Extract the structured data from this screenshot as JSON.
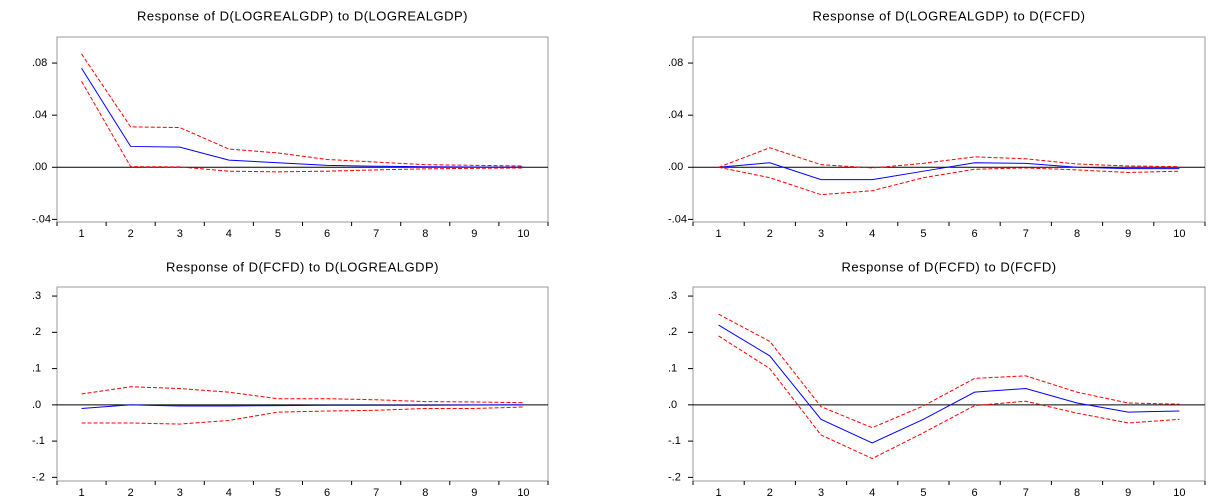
{
  "chart_data": [
    {
      "type": "line",
      "title": "Response of D(LOGREALGDP) to D(LOGREALGDP)",
      "categories": [
        "1",
        "2",
        "3",
        "4",
        "5",
        "6",
        "7",
        "8",
        "9",
        "10"
      ],
      "ylim": [
        -0.042,
        0.1
      ],
      "yticks": [
        {
          "value": -0.04,
          "label": "-.04"
        },
        {
          "value": 0,
          "label": ".00"
        },
        {
          "value": 0.04,
          "label": ".04"
        },
        {
          "value": 0.08,
          "label": ".08"
        }
      ],
      "series": [
        {
          "color": "#0000ff",
          "dash": false,
          "values": [
            0.076,
            0.016,
            0.0155,
            0.0055,
            0.0035,
            0.0015,
            0.0008,
            0.0004,
            0.0002,
            0.0001
          ]
        },
        {
          "color": "#ff0000",
          "dash": true,
          "values": [
            0.087,
            0.031,
            0.0305,
            0.014,
            0.011,
            0.006,
            0.004,
            0.002,
            0.0015,
            0.001
          ]
        },
        {
          "color": "#ff0000",
          "dash": true,
          "values": [
            0.066,
            0.0005,
            0.0003,
            -0.003,
            -0.0035,
            -0.003,
            -0.002,
            -0.0012,
            -0.0008,
            -0.0005
          ]
        }
      ]
    },
    {
      "type": "line",
      "title": "Response of D(LOGREALGDP) to D(FCFD)",
      "categories": [
        "1",
        "2",
        "3",
        "4",
        "5",
        "6",
        "7",
        "8",
        "9",
        "10"
      ],
      "ylim": [
        -0.042,
        0.1
      ],
      "yticks": [
        {
          "value": -0.04,
          "label": "-.04"
        },
        {
          "value": 0,
          "label": ".00"
        },
        {
          "value": 0.04,
          "label": ".04"
        },
        {
          "value": 0.08,
          "label": ".08"
        }
      ],
      "series": [
        {
          "color": "#0000ff",
          "dash": false,
          "values": [
            0,
            0.0035,
            -0.0095,
            -0.0095,
            -0.003,
            0.0035,
            0.003,
            0,
            -0.001,
            -0.001
          ]
        },
        {
          "color": "#ff0000",
          "dash": true,
          "values": [
            0,
            0.015,
            0.002,
            -0.0005,
            0.003,
            0.008,
            0.0065,
            0.0025,
            0.001,
            0.0005
          ]
        },
        {
          "color": "#ff0000",
          "dash": true,
          "values": [
            0,
            -0.008,
            -0.021,
            -0.018,
            -0.008,
            -0.0015,
            -0.0005,
            -0.002,
            -0.004,
            -0.003
          ]
        }
      ]
    },
    {
      "type": "line",
      "title": "Response of D(FCFD) to D(LOGREALGDP)",
      "categories": [
        "1",
        "2",
        "3",
        "4",
        "5",
        "6",
        "7",
        "8",
        "9",
        "10"
      ],
      "ylim": [
        -0.21,
        0.325
      ],
      "yticks": [
        {
          "value": -0.2,
          "label": "-.2"
        },
        {
          "value": -0.1,
          "label": "-.1"
        },
        {
          "value": 0,
          "label": ".0"
        },
        {
          "value": 0.1,
          "label": ".1"
        },
        {
          "value": 0.2,
          "label": ".2"
        },
        {
          "value": 0.3,
          "label": ".3"
        }
      ],
      "series": [
        {
          "color": "#0000ff",
          "dash": false,
          "values": [
            -0.01,
            0,
            -0.003,
            -0.003,
            -0.002,
            -0.001,
            -0.001,
            -0.001,
            -0.0005,
            0
          ]
        },
        {
          "color": "#ff0000",
          "dash": true,
          "values": [
            0.03,
            0.05,
            0.045,
            0.035,
            0.017,
            0.017,
            0.014,
            0.009,
            0.008,
            0.006
          ]
        },
        {
          "color": "#ff0000",
          "dash": true,
          "values": [
            -0.05,
            -0.05,
            -0.053,
            -0.043,
            -0.02,
            -0.017,
            -0.015,
            -0.01,
            -0.01,
            -0.006
          ]
        }
      ]
    },
    {
      "type": "line",
      "title": "Response of D(FCFD) to D(FCFD)",
      "categories": [
        "1",
        "2",
        "3",
        "4",
        "5",
        "6",
        "7",
        "8",
        "9",
        "10"
      ],
      "ylim": [
        -0.21,
        0.325
      ],
      "yticks": [
        {
          "value": -0.2,
          "label": "-.2"
        },
        {
          "value": -0.1,
          "label": "-.1"
        },
        {
          "value": 0,
          "label": ".0"
        },
        {
          "value": 0.1,
          "label": ".1"
        },
        {
          "value": 0.2,
          "label": ".2"
        },
        {
          "value": 0.3,
          "label": ".3"
        }
      ],
      "series": [
        {
          "color": "#0000ff",
          "dash": false,
          "values": [
            0.22,
            0.135,
            -0.04,
            -0.105,
            -0.04,
            0.035,
            0.045,
            0.005,
            -0.02,
            -0.017
          ]
        },
        {
          "color": "#ff0000",
          "dash": true,
          "values": [
            0.25,
            0.175,
            -0.005,
            -0.063,
            -0.003,
            0.073,
            0.08,
            0.035,
            0.005,
            0.002
          ]
        },
        {
          "color": "#ff0000",
          "dash": true,
          "values": [
            0.19,
            0.1,
            -0.083,
            -0.148,
            -0.077,
            -0.002,
            0.01,
            -0.023,
            -0.05,
            -0.04
          ]
        }
      ]
    }
  ]
}
